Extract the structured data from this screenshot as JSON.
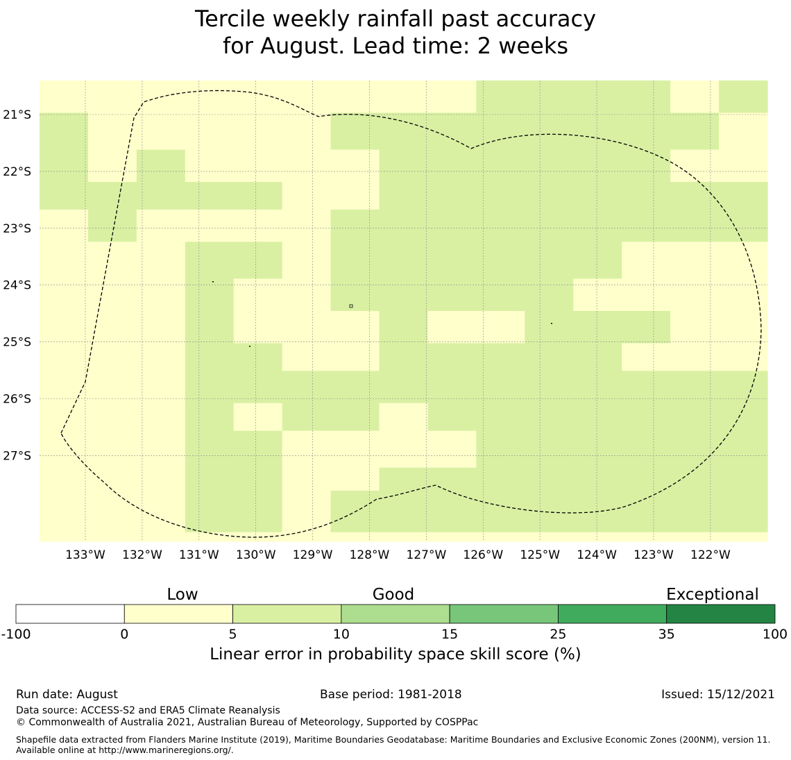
{
  "title": {
    "line1": "Tercile weekly rainfall past accuracy",
    "line2": "for August. Lead time: 2 weeks"
  },
  "map": {
    "lat_labels": [
      "21°S",
      "22°S",
      "23°S",
      "24°S",
      "25°S",
      "26°S",
      "27°S"
    ],
    "lon_labels": [
      "133°W",
      "132°W",
      "131°W",
      "130°W",
      "129°W",
      "128°W",
      "127°W",
      "126°W",
      "125°W",
      "124°W",
      "123°W",
      "122°W"
    ],
    "lat_values": [
      -21,
      -22,
      -23,
      -24,
      -25,
      -26,
      -27
    ],
    "lon_values": [
      -133,
      -132,
      -131,
      -130,
      -129,
      -128,
      -127,
      -126,
      -125,
      -124,
      -123,
      -122
    ],
    "grid_cols": 15,
    "grid_rows": 15,
    "class_colors": [
      "#ffffcc",
      "#d9f0a3",
      "#addd8e"
    ],
    "grid_classes": [
      "000000000111101",
      "100000111111110",
      "101000011111100",
      "111110011111111",
      "010000111111111",
      "000110111111000",
      "000100111110000",
      "000100010011100",
      "000110011111000",
      "000111111111111",
      "000101101111111",
      "000110000111111",
      "000110011111111",
      "000110111111111",
      "000000000000000"
    ],
    "row_boundaries": [
      0,
      0.07,
      0.15,
      0.22,
      0.28,
      0.35,
      0.43,
      0.5,
      0.57,
      0.63,
      0.7,
      0.76,
      0.84,
      0.89,
      0.98,
      1.0
    ],
    "boundary_style": "dashed black line",
    "gridlines": "on"
  },
  "colorbar": {
    "category_labels": [
      "Low",
      "Good",
      "Exceptional"
    ],
    "tick_labels": [
      "-100",
      "0",
      "5",
      "10",
      "15",
      "25",
      "35",
      "100"
    ],
    "colors": [
      "#ffffff",
      "#ffffcc",
      "#d9f0a3",
      "#addd8e",
      "#78c679",
      "#41ab5d",
      "#238443"
    ],
    "title": "Linear error in probability space skill score (%)"
  },
  "footer": {
    "run_date": "Run date: August",
    "base_period": "Base period: 1981-2018",
    "issued": "Issued: 15/12/2021",
    "data_source": "Data source: ACCESS-S2 and ERA5 Climate Reanalysis",
    "copyright": "© Commonwealth of Australia 2021, Australian Bureau of Meteorology, Supported by COSPPac",
    "shapefile": "Shapefile data extracted from Flanders Marine Institute (2019), Maritime Boundaries Geodatabase: Maritime Boundaries and Exclusive Economic Zones (200NM), version 11. Available online at http://www.marineregions.org/."
  }
}
